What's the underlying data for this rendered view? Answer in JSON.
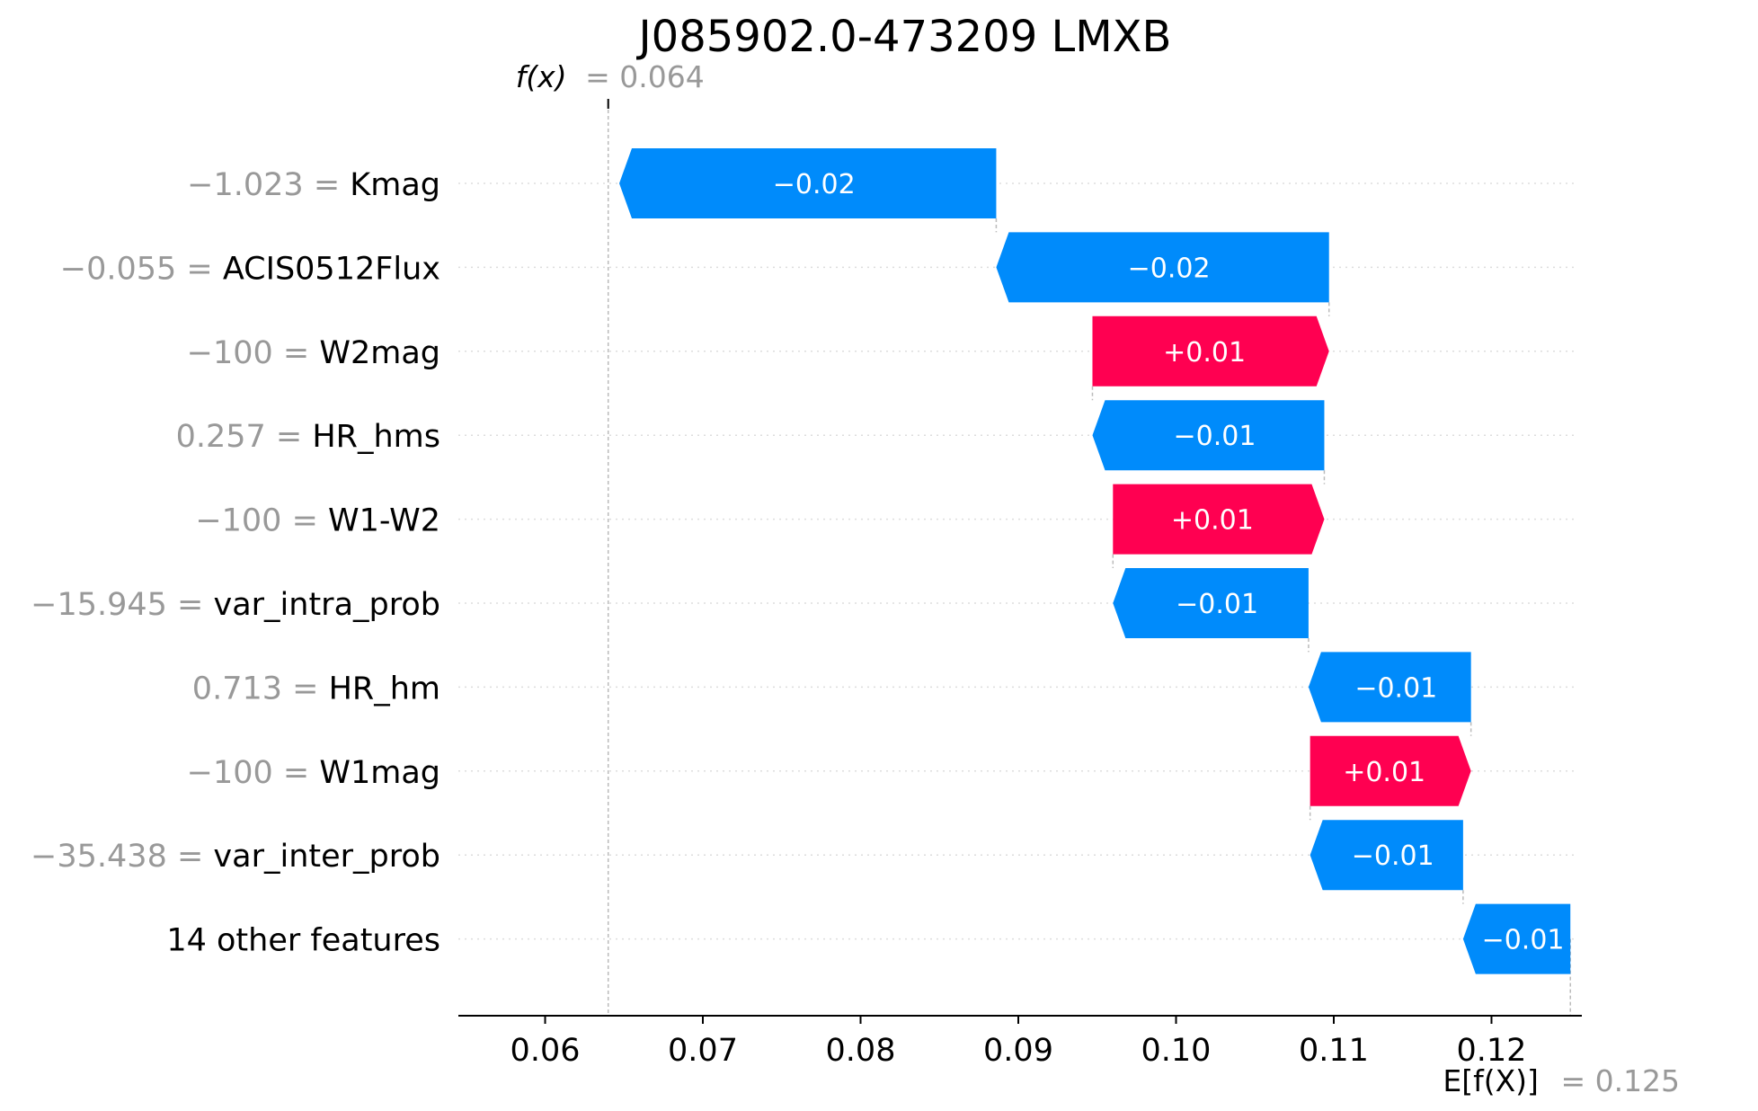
{
  "chart_data": {
    "type": "waterfall",
    "title": "J085902.0-473209 LMXB",
    "fx_label": "f(x)",
    "fx_value": "= 0.064",
    "efx_label": "E[f(X)]",
    "efx_value": "= 0.125",
    "base_value": 0.125,
    "output_value": 0.064,
    "xlim": [
      0.0545,
      0.1255
    ],
    "xticks": [
      0.06,
      0.07,
      0.08,
      0.09,
      0.1,
      0.11,
      0.12
    ],
    "xtick_labels": [
      "0.06",
      "0.07",
      "0.08",
      "0.09",
      "0.10",
      "0.11",
      "0.12"
    ],
    "grid": false,
    "features": [
      {
        "value": "−1.023 =",
        "name": "Kmag",
        "contribution": -0.0239,
        "label": "−0.02"
      },
      {
        "value": "−0.055 =",
        "name": "ACIS0512Flux",
        "contribution": -0.0211,
        "label": "−0.02"
      },
      {
        "value": "−100 =",
        "name": "W2mag",
        "contribution": 0.015,
        "label": "+0.01"
      },
      {
        "value": "0.257 =",
        "name": "HR_hms",
        "contribution": -0.0147,
        "label": "−0.01"
      },
      {
        "value": "−100 =",
        "name": "W1-W2",
        "contribution": 0.0134,
        "label": "+0.01"
      },
      {
        "value": "−15.945 =",
        "name": "var_intra_prob",
        "contribution": -0.0124,
        "label": "−0.01"
      },
      {
        "value": "0.713 =",
        "name": "HR_hm",
        "contribution": -0.0103,
        "label": "−0.01"
      },
      {
        "value": "−100 =",
        "name": "W1mag",
        "contribution": 0.0102,
        "label": "+0.01"
      },
      {
        "value": "−35.438 =",
        "name": "var_inter_prob",
        "contribution": -0.0097,
        "label": "−0.01"
      },
      {
        "value": "",
        "name": "14 other features",
        "contribution": -0.0068,
        "label": "−0.01"
      }
    ],
    "colors": {
      "positive": "#ff0051",
      "negative": "#008bfb"
    }
  }
}
